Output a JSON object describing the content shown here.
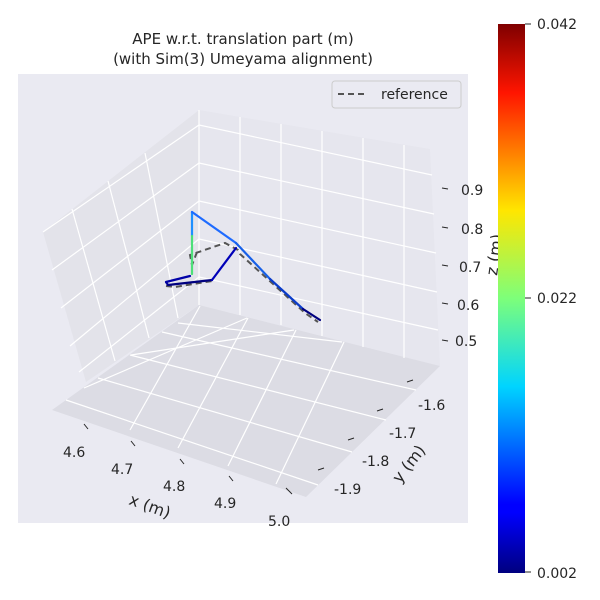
{
  "chart_data": {
    "type": "line",
    "title_line1": "APE w.r.t. translation part (m)",
    "title_line2": "(with Sim(3) Umeyama alignment)",
    "xlabel": "x (m)",
    "ylabel": "y (m)",
    "zlabel": "z (m)",
    "x_ticks": [
      "4.6",
      "4.7",
      "4.8",
      "4.9",
      "5.0"
    ],
    "y_ticks": [
      "-1.6",
      "-1.7",
      "-1.8",
      "-1.9"
    ],
    "z_ticks": [
      "0.9",
      "0.8",
      "0.7",
      "0.6",
      "0.5"
    ],
    "legend": {
      "reference_label": "reference",
      "placement": "top-right"
    },
    "colorbar": {
      "colormap": "jet",
      "min": 0.002,
      "mid": 0.022,
      "max": 0.042,
      "tick_labels": [
        "0.042",
        "0.022",
        "0.002"
      ]
    },
    "series": [
      {
        "name": "reference",
        "style": "dashed",
        "color": "#555555"
      }
    ]
  }
}
